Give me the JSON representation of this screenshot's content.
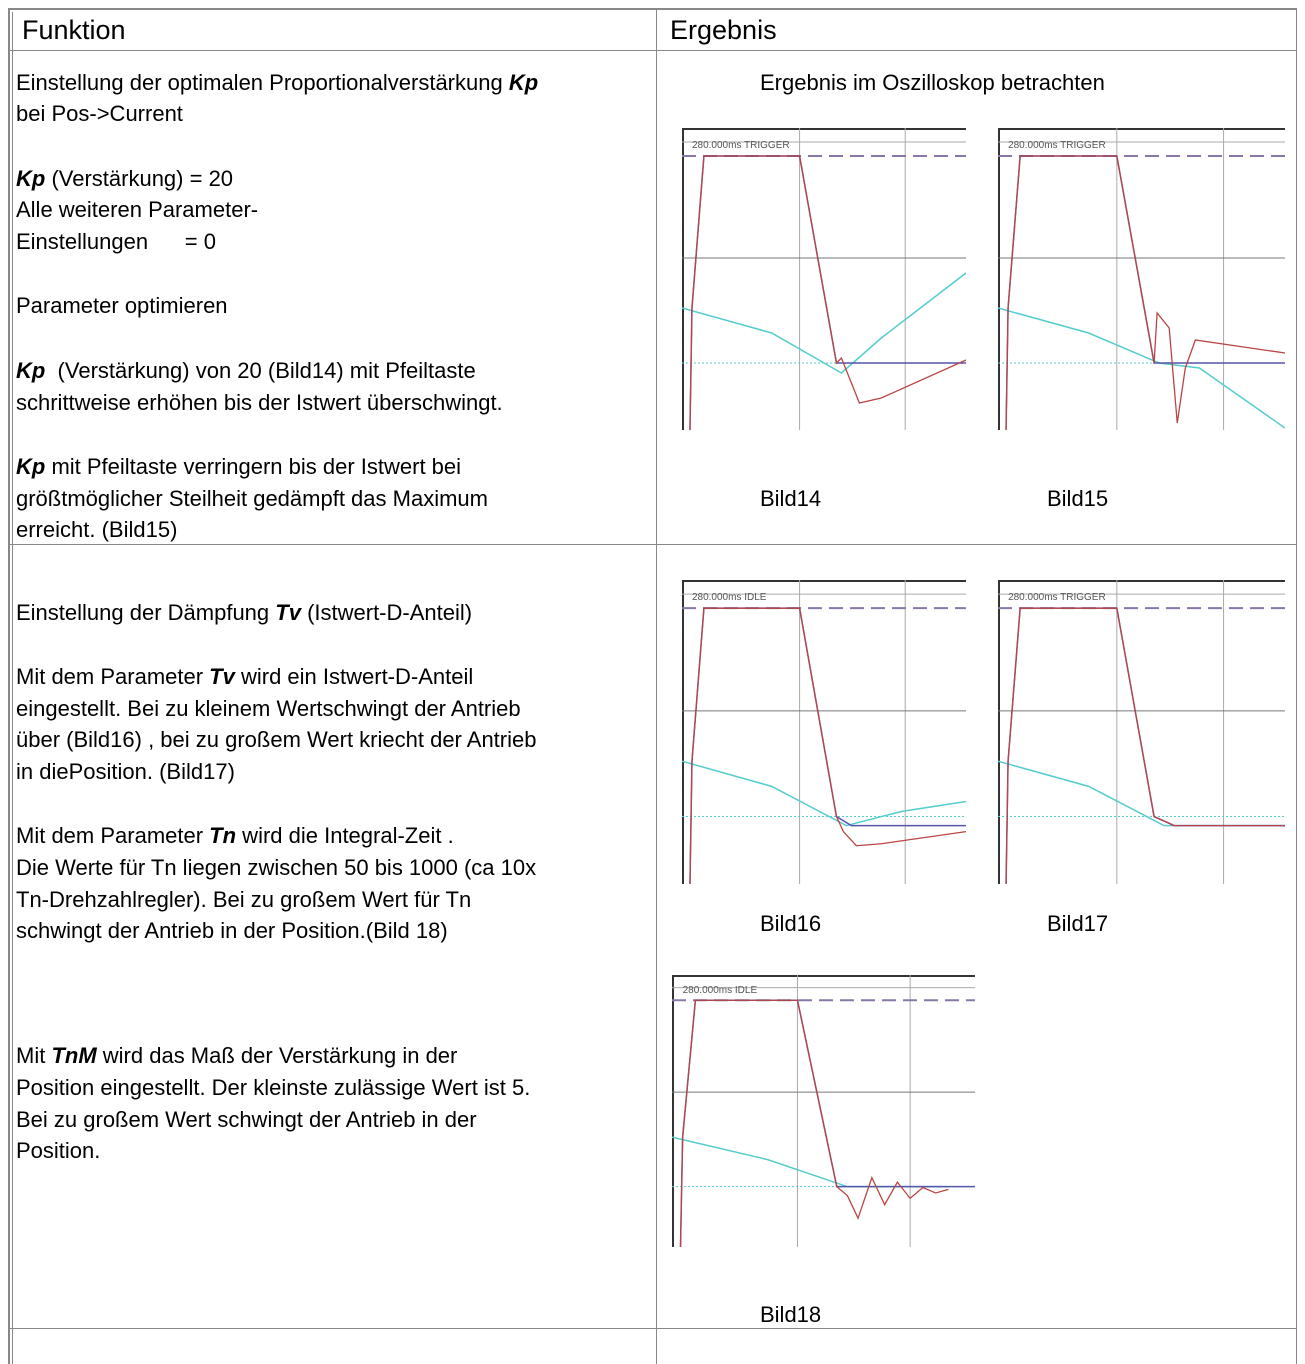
{
  "header": [
    "Funktion",
    "Ergebnis"
  ],
  "rows": [
    {
      "function": [
        [
          "Einstellung der optimalen Proportionalverstärkung ",
          "Kp"
        ],
        [
          "bei Pos->Current"
        ],
        [
          "Kp",
          " (Verstärkung) = 20"
        ],
        [
          "Alle weiteren Parameter-"
        ],
        [
          "Einstellungen      = 0"
        ],
        [
          "Parameter optimieren"
        ],
        [
          "Kp",
          "  (Verstärkung) von 20 (Bild14) mit Pfeiltaste"
        ],
        [
          "schrittweise erhöhen bis der Istwert überschwingt."
        ],
        [
          "Kp",
          " mit Pfeiltaste verringern bis der Istwert bei"
        ],
        [
          "größtmöglicher Steilheit gedämpft das Maximum"
        ],
        [
          "erreicht. (Bild15)"
        ]
      ],
      "result": {
        "intro": "Ergebnis im Oszilloskop betrachten",
        "figures": [
          {
            "label": "280.000ms TRIGGER",
            "caption": "Bild14"
          },
          {
            "label": "280.000ms TRIGGER",
            "caption": "Bild15"
          }
        ]
      }
    },
    {
      "function": [
        [
          "Einstellung der Dämpfung ",
          "Tv",
          " (Istwert-D-Anteil)"
        ],
        [
          "Mit dem Parameter ",
          "Tv",
          " wird ein Istwert-D-Anteil"
        ],
        [
          "eingestellt. Bei zu kleinem Wertschwingt der Antrieb"
        ],
        [
          "über (Bild16) , bei zu großem Wert kriecht der Antrieb"
        ],
        [
          "in diePosition. (Bild17)"
        ],
        [
          "Mit dem Parameter ",
          "Tn",
          " wird die Integral-Zeit ."
        ],
        [
          "Die Werte für Tn liegen zwischen 50 bis 1000 (ca 10x"
        ],
        [
          "Tn-Drehzahlregler). Bei zu großem Wert für Tn"
        ],
        [
          "schwingt der Antrieb in der Position.(Bild 18)"
        ],
        [
          "Mit ",
          "TnM",
          " wird das Maß der Verstärkung in der"
        ],
        [
          "Position eingestellt. Der kleinste zulässige Wert ist 5."
        ],
        [
          "Bei zu großem Wert schwingt der Antrieb in der"
        ],
        [
          "Position."
        ]
      ],
      "result": {
        "figures": [
          {
            "label": "280.000ms IDLE",
            "caption": "Bild16"
          },
          {
            "label": "280.000ms TRIGGER",
            "caption": "Bild17"
          },
          {
            "label": "280.000ms IDLE",
            "caption": "Bild18"
          }
        ]
      }
    }
  ]
}
